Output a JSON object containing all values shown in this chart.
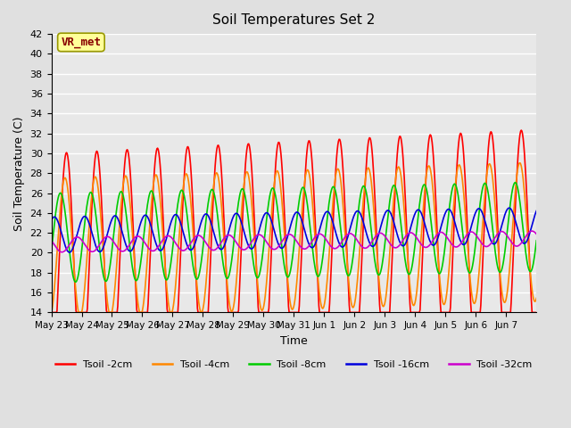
{
  "title": "Soil Temperatures Set 2",
  "xlabel": "Time",
  "ylabel": "Soil Temperature (C)",
  "ylim": [
    14,
    42
  ],
  "yticks": [
    14,
    16,
    18,
    20,
    22,
    24,
    26,
    28,
    30,
    32,
    34,
    36,
    38,
    40,
    42
  ],
  "x_labels": [
    "May 23",
    "May 24",
    "May 25",
    "May 26",
    "May 27",
    "May 28",
    "May 29",
    "May 30",
    "May 31",
    "Jun 1",
    "Jun 2",
    "Jun 3",
    "Jun 4",
    "Jun 5",
    "Jun 6",
    "Jun 7"
  ],
  "background_color": "#e0e0e0",
  "plot_bg_color": "#e8e8e8",
  "grid_color": "#ffffff",
  "annotation_text": "VR_met",
  "annotation_bg": "#ffff99",
  "annotation_border": "#999900",
  "annotation_text_color": "#880000",
  "series": [
    {
      "label": "Tsoil -2cm",
      "color": "#ff0000",
      "lw": 1.2
    },
    {
      "label": "Tsoil -4cm",
      "color": "#ff8800",
      "lw": 1.2
    },
    {
      "label": "Tsoil -8cm",
      "color": "#00cc00",
      "lw": 1.2
    },
    {
      "label": "Tsoil -16cm",
      "color": "#0000dd",
      "lw": 1.2
    },
    {
      "label": "Tsoil -32cm",
      "color": "#cc00cc",
      "lw": 1.2
    }
  ],
  "n_days": 16,
  "pts_per_day": 48
}
